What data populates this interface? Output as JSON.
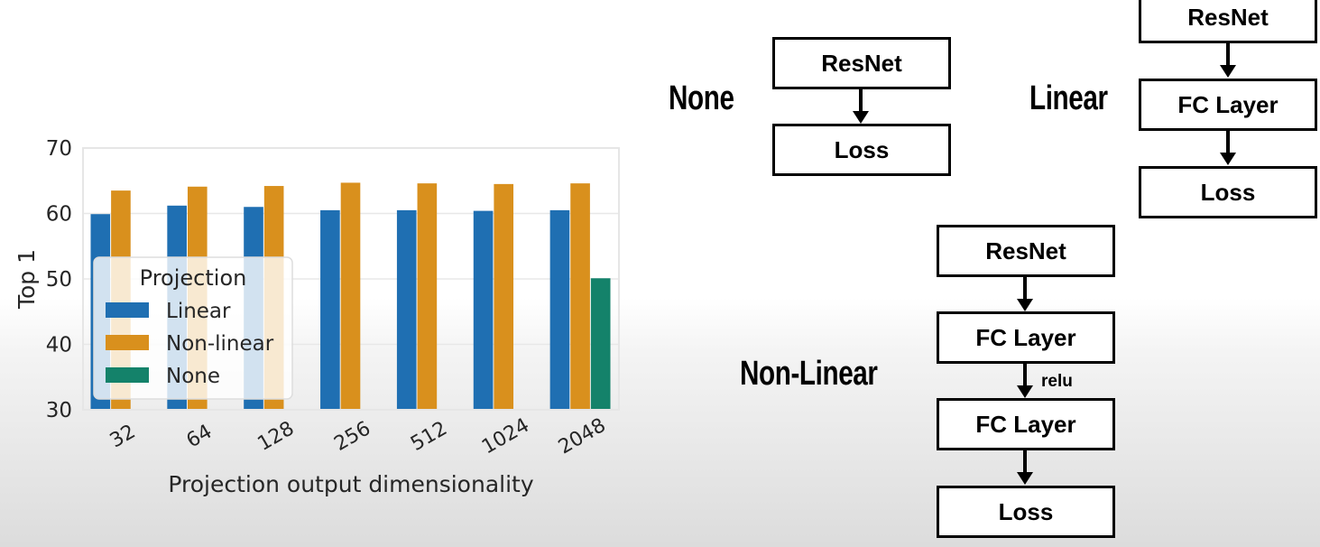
{
  "chart_data": {
    "type": "bar",
    "categories": [
      "32",
      "64",
      "128",
      "256",
      "512",
      "1024",
      "2048"
    ],
    "series": [
      {
        "name": "Linear",
        "values": [
          59.9,
          61.2,
          61.0,
          60.5,
          60.5,
          60.4,
          60.5
        ],
        "color": "#1f6fb2"
      },
      {
        "name": "Non-linear",
        "values": [
          63.5,
          64.1,
          64.2,
          64.7,
          64.6,
          64.5,
          64.6
        ],
        "color": "#d9901d"
      },
      {
        "name": "None",
        "values": [
          null,
          null,
          null,
          null,
          null,
          null,
          50.1
        ],
        "color": "#14826a"
      }
    ],
    "title": "",
    "xlabel": "Projection output dimensionality",
    "ylabel": "Top 1",
    "ylim": [
      30,
      70
    ],
    "yticks": [
      30,
      40,
      50,
      60,
      70
    ],
    "grid": true,
    "legend": {
      "title": "Projection",
      "placement": "lower-left"
    }
  },
  "diagrams": {
    "none": {
      "label": "None",
      "boxes": [
        "ResNet",
        "Loss"
      ]
    },
    "linear": {
      "label": "Linear",
      "boxes": [
        "ResNet",
        "FC Layer",
        "Loss"
      ]
    },
    "nonlinear": {
      "label": "Non-Linear",
      "boxes": [
        "ResNet",
        "FC Layer",
        "FC Layer",
        "Loss"
      ],
      "activation": "relu"
    }
  }
}
